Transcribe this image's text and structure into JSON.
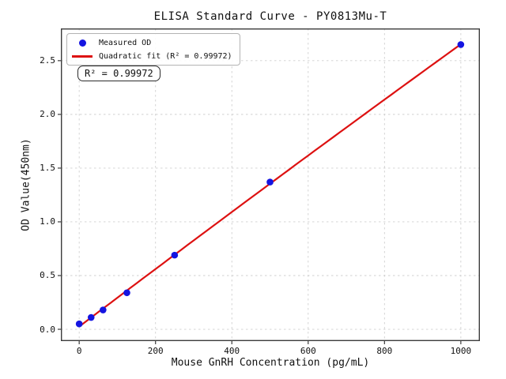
{
  "figure": {
    "title": "ELISA Standard Curve - PY0813Mu-T",
    "xlabel": "Mouse GnRH Concentration (pg/mL)",
    "ylabel": "OD Value(450nm)",
    "annotation": "R² = 0.99972",
    "legend": {
      "measured": "Measured OD",
      "fit": "Quadratic fit (R² = 0.99972)"
    }
  },
  "chart_data": {
    "type": "scatter",
    "title": "ELISA Standard Curve - PY0813Mu-T",
    "xlabel": "Mouse GnRH Concentration (pg/mL)",
    "ylabel": "OD Value(450nm)",
    "x": [
      0,
      31.25,
      62.5,
      125,
      250,
      500,
      1000
    ],
    "series": [
      {
        "name": "Measured OD",
        "kind": "scatter",
        "values": [
          0.05,
          0.11,
          0.18,
          0.34,
          0.69,
          1.37,
          2.65
        ]
      },
      {
        "name": "Quadratic fit (R² = 0.99972)",
        "kind": "quadratic_fit_line",
        "fit_of": "Measured OD"
      }
    ],
    "r_squared": 0.99972,
    "xlim": [
      -48,
      1050
    ],
    "ylim": [
      -0.11,
      2.8
    ],
    "x_ticks": [
      0,
      200,
      400,
      600,
      800,
      1000
    ],
    "x_tick_labels": [
      "0",
      "200",
      "400",
      "600",
      "800",
      "1000"
    ],
    "y_ticks": [
      0.0,
      0.5,
      1.0,
      1.5,
      2.0,
      2.5
    ],
    "y_tick_labels": [
      "0.0",
      "0.5",
      "1.0",
      "1.5",
      "2.0",
      "2.5"
    ],
    "grid": true,
    "grid_style": "dashed",
    "legend_position": "upper left",
    "colors": {
      "points": "#1414e1",
      "fit_line": "#dd1111",
      "grid": "#cfcfcf",
      "spine": "#3c3c3c",
      "text": "#111111"
    }
  }
}
